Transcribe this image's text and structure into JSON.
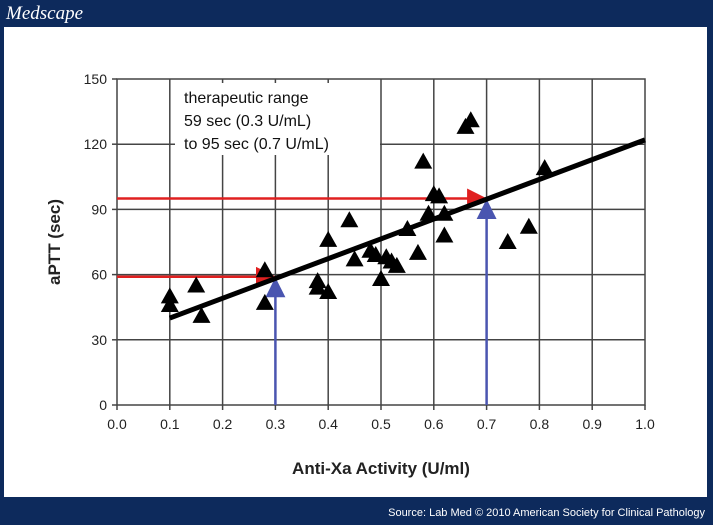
{
  "header": {
    "logo": "Medscape"
  },
  "footer": {
    "source": "Source: Lab Med © 2010 American Society for Clinical Pathology"
  },
  "chart_data": {
    "type": "scatter",
    "xlabel": "Anti-Xa Activity (U/ml)",
    "ylabel": "aPTT (sec)",
    "xlim": [
      0,
      1.0
    ],
    "ylim": [
      0,
      150
    ],
    "xticks": [
      "0.0",
      "0.1",
      "0.2",
      "0.3",
      "0.4",
      "0.5",
      "0.6",
      "0.7",
      "0.8",
      "0.9",
      "1.0"
    ],
    "yticks": [
      "0",
      "30",
      "60",
      "90",
      "120",
      "150"
    ],
    "grid": true,
    "annotation": [
      "therapeutic range",
      "59 sec (0.3 U/mL)",
      "to 95 sec (0.7 U/mL)"
    ],
    "points": [
      [
        0.1,
        50
      ],
      [
        0.1,
        46
      ],
      [
        0.15,
        55
      ],
      [
        0.16,
        41
      ],
      [
        0.28,
        47
      ],
      [
        0.28,
        62
      ],
      [
        0.38,
        54
      ],
      [
        0.38,
        57
      ],
      [
        0.4,
        52
      ],
      [
        0.4,
        76
      ],
      [
        0.44,
        85
      ],
      [
        0.45,
        67
      ],
      [
        0.48,
        71
      ],
      [
        0.49,
        69
      ],
      [
        0.5,
        58
      ],
      [
        0.51,
        68
      ],
      [
        0.52,
        66
      ],
      [
        0.53,
        64
      ],
      [
        0.55,
        81
      ],
      [
        0.57,
        70
      ],
      [
        0.58,
        112
      ],
      [
        0.59,
        88
      ],
      [
        0.6,
        97
      ],
      [
        0.61,
        96
      ],
      [
        0.62,
        78
      ],
      [
        0.62,
        88
      ],
      [
        0.66,
        128
      ],
      [
        0.67,
        131
      ],
      [
        0.74,
        75
      ],
      [
        0.78,
        82
      ],
      [
        0.81,
        109
      ]
    ],
    "regression_line": [
      [
        0.1,
        40
      ],
      [
        1.0,
        122
      ]
    ],
    "reference_arrows": [
      {
        "x": 0.3,
        "y": 59
      },
      {
        "x": 0.7,
        "y": 95
      }
    ],
    "colors": {
      "horizontal_arrow": "#e02020",
      "vertical_arrow": "#4a55b0",
      "marker": "#000000"
    }
  }
}
